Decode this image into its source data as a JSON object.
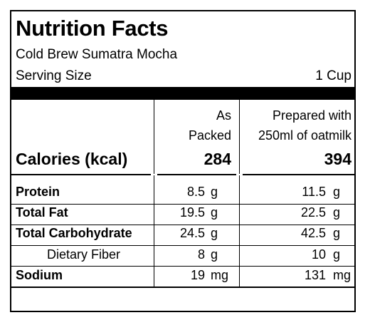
{
  "label": {
    "title": "Nutrition Facts",
    "product": "Cold Brew Sumatra Mocha",
    "serving_label": "Serving Size",
    "serving_value": "1 Cup"
  },
  "columns": {
    "packed": [
      "As",
      "Packed"
    ],
    "prepared": [
      "Prepared with",
      "250ml of oatmilk"
    ]
  },
  "calories": {
    "label": "Calories (kcal)",
    "packed": "284",
    "prepared": "394"
  },
  "nutrients": [
    {
      "name": "Protein",
      "packed": "8.5",
      "packed_unit": "g",
      "prepared": "11.5",
      "prepared_unit": "g"
    },
    {
      "name": "Total Fat",
      "packed": "19.5",
      "packed_unit": "g",
      "prepared": "22.5",
      "prepared_unit": "g"
    },
    {
      "name": "Total Carbohydrate",
      "packed": "24.5",
      "packed_unit": "g",
      "prepared": "42.5",
      "prepared_unit": "g"
    },
    {
      "name": "Dietary Fiber",
      "packed": "8",
      "packed_unit": "g",
      "prepared": "10",
      "prepared_unit": "g"
    },
    {
      "name": "Sodium",
      "packed": "19",
      "packed_unit": "mg",
      "prepared": "131",
      "prepared_unit": "mg"
    }
  ]
}
